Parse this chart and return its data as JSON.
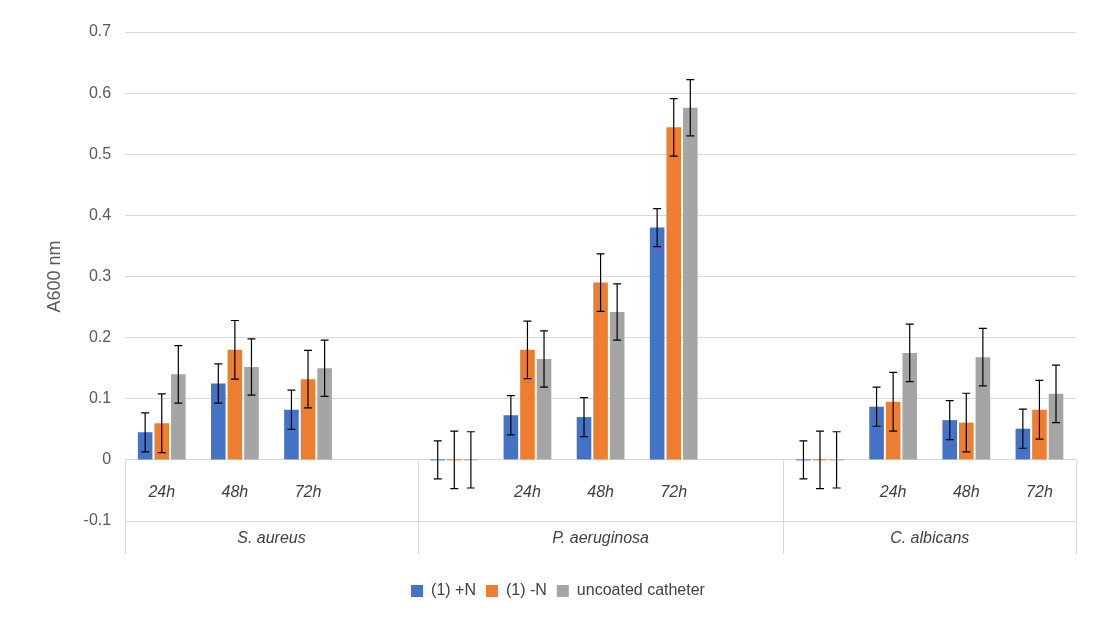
{
  "chart_data": {
    "type": "bar",
    "ylabel": "A600 nm",
    "categories": [
      "24h",
      "48h",
      "72h",
      null,
      null,
      "24h",
      "48h",
      "72h",
      null,
      null,
      "24h",
      "48h",
      "72h"
    ],
    "annotations": [
      "S. aureus",
      "P. aeruginosa",
      "C. albicans"
    ],
    "series": [
      {
        "name": "(1) +N",
        "color": "#4472c4",
        "values": [
          0.045,
          0.125,
          0.082,
          null,
          0,
          0.073,
          0.07,
          0.38,
          null,
          0,
          0.087,
          0.065,
          0.051
        ],
        "errors": [
          0.032,
          0.032,
          0.032,
          null,
          0.031,
          0.032,
          0.032,
          0.031,
          null,
          0.031,
          0.032,
          0.032,
          0.032
        ]
      },
      {
        "name": "(1) -N",
        "color": "#ed7d31",
        "values": [
          0.06,
          0.18,
          0.132,
          null,
          0,
          0.18,
          0.29,
          0.544,
          null,
          0,
          0.095,
          0.061,
          0.082
        ],
        "errors": [
          0.048,
          0.048,
          0.047,
          null,
          0.047,
          0.047,
          0.047,
          0.047,
          null,
          0.047,
          0.048,
          0.048,
          0.048
        ]
      },
      {
        "name": "uncoated catheter",
        "color": "#a5a5a5",
        "values": [
          0.14,
          0.152,
          0.15,
          null,
          0,
          0.165,
          0.242,
          0.576,
          null,
          0,
          0.175,
          0.168,
          0.108
        ],
        "errors": [
          0.047,
          0.046,
          0.046,
          null,
          0.046,
          0.046,
          0.046,
          0.046,
          null,
          0.046,
          0.047,
          0.047,
          0.047
        ]
      }
    ],
    "ylim": [
      -0.1,
      0.7
    ],
    "yticks": [
      -0.1,
      0,
      0.1,
      0.2,
      0.3,
      0.4,
      0.5,
      0.6,
      0.7
    ],
    "grid": "y",
    "legend": "bottom"
  }
}
